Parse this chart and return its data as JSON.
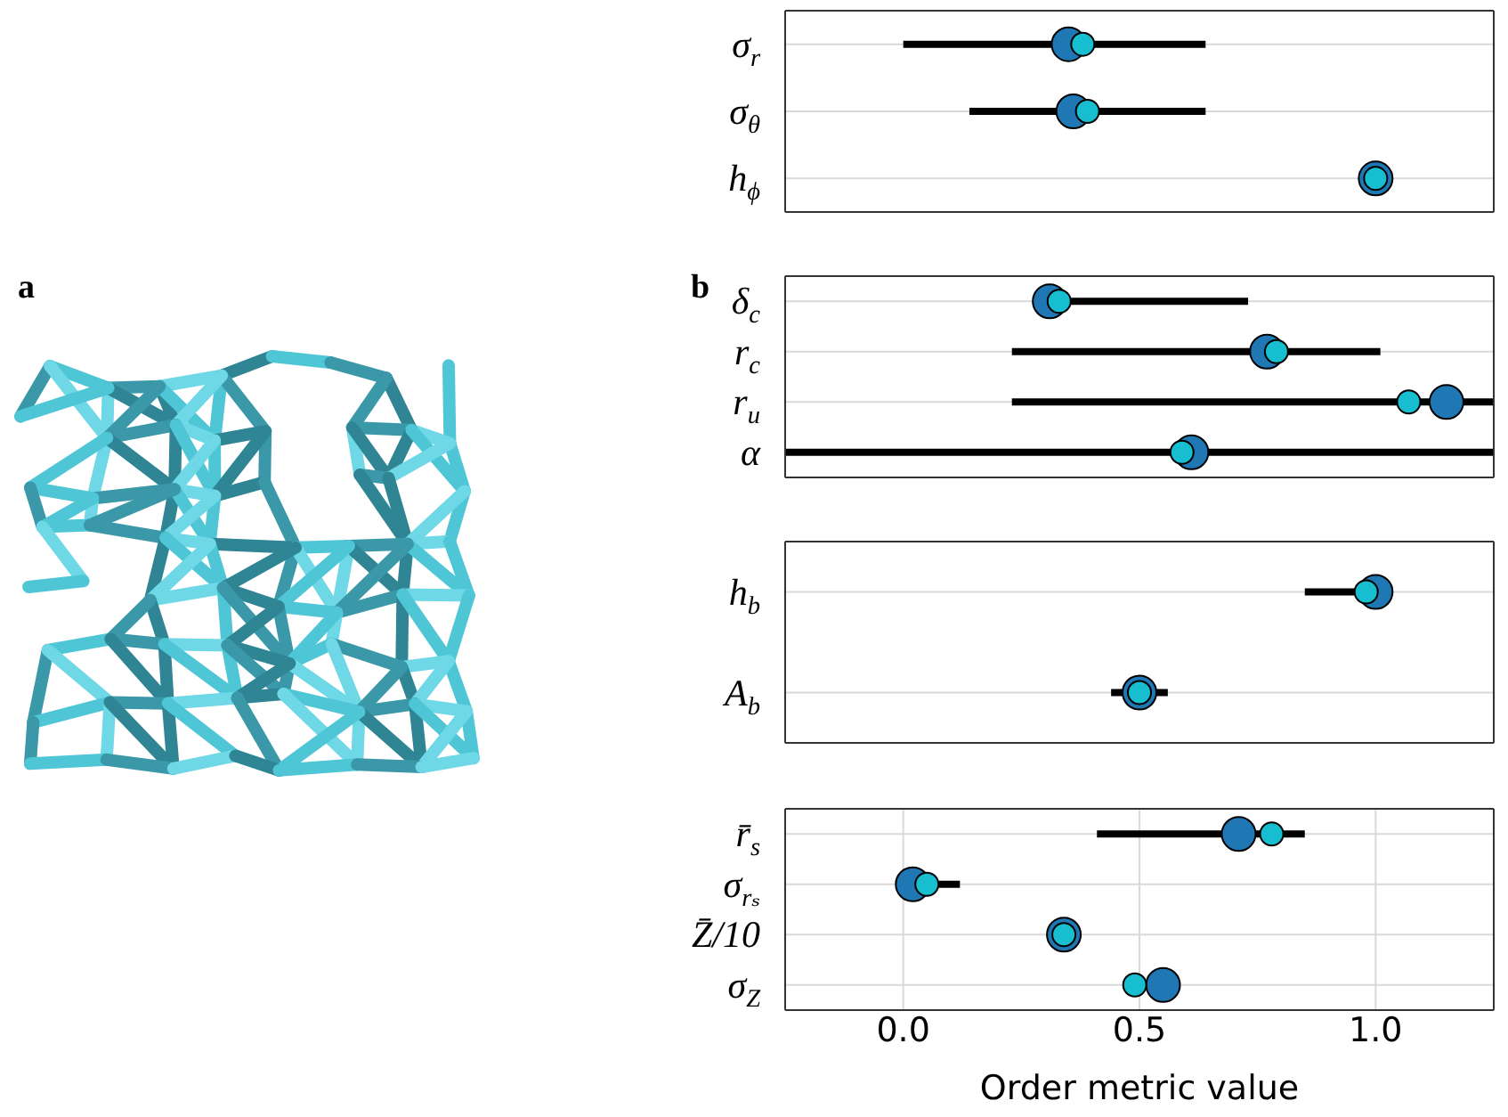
{
  "chart_data": [
    {
      "type": "scatter",
      "orientation": "horizontal",
      "categories": [
        "σ$_{r}$",
        "σ$_{θ}$",
        "h$_{ϕ}$"
      ],
      "series": [
        {
          "color": "#1f77b4",
          "values": [
            0.35,
            0.36,
            1.0
          ],
          "errors": [
            [
              0.0,
              0.64
            ],
            [
              0.14,
              0.64
            ],
            null
          ]
        },
        {
          "color": "#17becf",
          "values": [
            0.38,
            0.39,
            1.0
          ]
        }
      ],
      "xlim": [
        -0.25,
        1.25
      ],
      "xticks": [
        {
          "value": 0,
          "label": null
        },
        {
          "value": 0.5,
          "label": null
        },
        {
          "value": 1,
          "label": null
        }
      ],
      "grid": true,
      "marker": "circle",
      "tick_labels": "y",
      "annotations": [
        "a"
      ]
    },
    {
      "type": "scatter",
      "orientation": "horizontal",
      "categories": [
        "δ$_{c}$",
        "r$_{c}$",
        "r$_{u}$",
        "α"
      ],
      "series": [
        {
          "color": "#1f77b4",
          "values": [
            0.31,
            0.77,
            1.15,
            0.61
          ],
          "errors": [
            [
              0.31,
              0.73
            ],
            [
              0.23,
              1.01
            ],
            [
              0.23,
              1.25
            ],
            [
              -0.25,
              1.25
            ]
          ]
        },
        {
          "color": "#17becf",
          "values": [
            0.33,
            0.79,
            1.07,
            0.59
          ]
        }
      ],
      "xlim": [
        -0.25,
        1.25
      ],
      "xticks": [
        {
          "value": 0,
          "label": null
        },
        {
          "value": 0.5,
          "label": null
        },
        {
          "value": 1,
          "label": null
        }
      ],
      "grid": true,
      "marker": "circle",
      "tick_labels": "y",
      "annotations": [
        "b"
      ]
    },
    {
      "type": "scatter",
      "orientation": "horizontal",
      "categories": [
        "h$_{b}$",
        "A$_{b}$"
      ],
      "series": [
        {
          "color": "#1f77b4",
          "values": [
            1.0,
            0.5
          ],
          "errors": [
            [
              0.85,
              1.0
            ],
            [
              0.44,
              0.56
            ]
          ]
        },
        {
          "color": "#17becf",
          "values": [
            0.98,
            0.5
          ]
        }
      ],
      "xlim": [
        -0.25,
        1.25
      ],
      "xticks": [
        {
          "value": 0,
          "label": null
        },
        {
          "value": 0.5,
          "label": null
        },
        {
          "value": 1,
          "label": null
        }
      ],
      "grid": true,
      "marker": "circle",
      "tick_labels": "y"
    },
    {
      "type": "scatter",
      "orientation": "horizontal",
      "categories": [
        "r̄$_{s}$",
        "σ$_{rₛ}$",
        "Z̄/10",
        "σ$_{Z}$"
      ],
      "series": [
        {
          "color": "#1f77b4",
          "values": [
            0.71,
            0.02,
            0.34,
            0.55
          ],
          "errors": [
            [
              0.41,
              0.85
            ],
            [
              0.02,
              0.12
            ],
            null,
            null
          ]
        },
        {
          "color": "#17becf",
          "values": [
            0.78,
            0.05,
            0.34,
            0.49
          ]
        }
      ],
      "xlim": [
        -0.25,
        1.25
      ],
      "xticks": [
        {
          "value": 0,
          "label": "0.0"
        },
        {
          "value": 0.5,
          "label": "0.5"
        },
        {
          "value": 1,
          "label": "1.0"
        }
      ],
      "grid": true,
      "marker": "circle",
      "xlabel": "Order metric value"
    }
  ]
}
